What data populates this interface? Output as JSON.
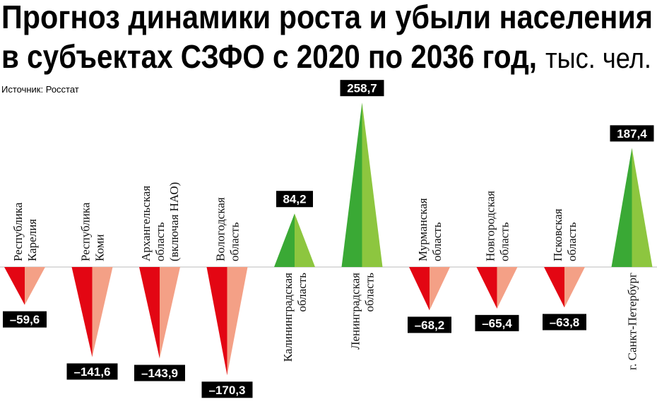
{
  "chart_data": {
    "type": "triangle",
    "title": [
      "Прогноз динамики роста и убыли населения",
      "в субъектах СЗФО с 2020 по 2036 год,"
    ],
    "unit": "тыс. чел.",
    "source": "Источник: Росстат",
    "categories": [
      [
        "Республика",
        "Карелия"
      ],
      [
        "Республика",
        "Коми"
      ],
      [
        "Архангельская",
        "область",
        "(включая НАО)"
      ],
      [
        "Вологодская",
        "область"
      ],
      [
        "Калининградская",
        "область"
      ],
      [
        "Ленинградская",
        "область"
      ],
      [
        "Мурманская",
        "область"
      ],
      [
        "Новгородская",
        "область"
      ],
      [
        "Псковская",
        "область"
      ],
      [
        "г. Санкт-Петербург"
      ]
    ],
    "values": [
      -59.6,
      -141.6,
      -143.9,
      -170.3,
      84.2,
      258.7,
      -68.2,
      -65.4,
      -63.8,
      187.4
    ],
    "value_labels": [
      "–59,6",
      "–141,6",
      "–143,9",
      "–170,3",
      "84,2",
      "258,7",
      "–68,2",
      "–65,4",
      "–63,8",
      "187,4"
    ],
    "colors": {
      "negative": [
        "#e30613",
        "#f4a086"
      ],
      "positive": [
        "#3aa935",
        "#8dc63f"
      ]
    }
  }
}
